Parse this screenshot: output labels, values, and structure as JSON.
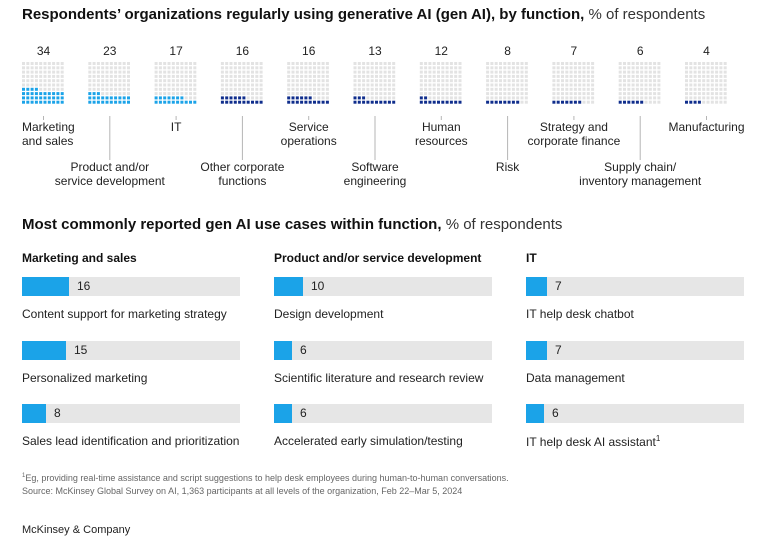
{
  "header": {
    "title_bold": "Respondents’ organizations regularly using generative AI (gen AI), by function,",
    "title_unit": "% of respondents"
  },
  "chart_data": [
    {
      "type": "waffle",
      "title": "Respondents’ organizations regularly using generative AI (gen AI), by function, % of respondents",
      "categories": [
        "Marketing and sales",
        "Product and/or service development",
        "IT",
        "Other corporate functions",
        "Service operations",
        "Software engineering",
        "Human resources",
        "Risk",
        "Strategy and corporate finance",
        "Supply chain/ inventory management",
        "Manufacturing"
      ],
      "values": [
        34,
        23,
        17,
        16,
        16,
        13,
        12,
        8,
        7,
        6,
        4
      ],
      "labels": [
        [
          "Marketing",
          "and sales"
        ],
        [
          "Product and/or",
          "service development"
        ],
        [
          "IT"
        ],
        [
          "Other corporate",
          "functions"
        ],
        [
          "Service",
          "operations"
        ],
        [
          "Software",
          "engineering"
        ],
        [
          "Human",
          "resources"
        ],
        [
          "Risk"
        ],
        [
          "Strategy and",
          "corporate finance"
        ],
        [
          "Supply chain/",
          "inventory management"
        ],
        [
          "Manufacturing"
        ]
      ],
      "colors": {
        "light": "#1ba3e8",
        "dark": "#0f2d8c",
        "empty": "#e3e3e3",
        "leader": "#b5b5b5"
      }
    },
    {
      "type": "bar",
      "title": "Most commonly reported gen AI use cases within function, % of respondents",
      "xlim": [
        0,
        100
      ],
      "groups": [
        {
          "name": "Marketing and sales",
          "items": [
            {
              "label": "Content support for marketing strategy",
              "value": 16
            },
            {
              "label": "Personalized marketing",
              "value": 15
            },
            {
              "label": "Sales lead identification and prioritization",
              "value": 8
            }
          ]
        },
        {
          "name": "Product and/or service development",
          "items": [
            {
              "label": "Design development",
              "value": 10
            },
            {
              "label": "Scientific literature and research review",
              "value": 6
            },
            {
              "label": "Accelerated early simulation/testing",
              "value": 6
            }
          ]
        },
        {
          "name": "IT",
          "items": [
            {
              "label": "IT help desk chatbot",
              "value": 7
            },
            {
              "label": "Data management",
              "value": 7
            },
            {
              "label": "IT help desk AI assistant",
              "value": 6,
              "footnote": "1"
            }
          ]
        }
      ],
      "colors": {
        "bar": "#1ba3e8",
        "track": "#e6e6e6"
      }
    }
  ],
  "section2": {
    "title_bold": "Most commonly reported gen AI use cases within function,",
    "title_unit": "% of respondents"
  },
  "footnotes": {
    "note1_mark": "1",
    "note1": "Eg, providing real-time assistance and script suggestions to help desk employees during human-to-human conversations.",
    "source": "Source: McKinsey Global Survey on AI, 1,363 participants at all levels of the organization, Feb 22–Mar 5, 2024"
  },
  "brand": "McKinsey & Company"
}
